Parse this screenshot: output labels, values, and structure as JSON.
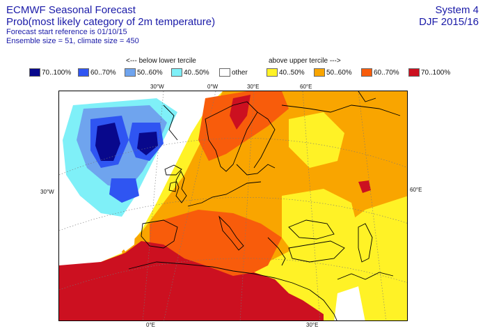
{
  "header": {
    "title_line1": "ECMWF Seasonal Forecast",
    "title_line2": "Prob(most likely category of 2m temperature)",
    "forecast_start": "Forecast start reference is 01/10/15",
    "ensemble": "Ensemble size = 51, climate size = 450",
    "system": "System 4",
    "season": "DJF 2015/16"
  },
  "legend": {
    "below_heading": "<--- below lower tercile",
    "above_heading": "above upper tercile --->",
    "items": [
      {
        "label": "70..100%",
        "color": "#08088c"
      },
      {
        "label": "60..70%",
        "color": "#2f55f2"
      },
      {
        "label": "50..60%",
        "color": "#6fa4ee"
      },
      {
        "label": "40..50%",
        "color": "#7ff0f8"
      },
      {
        "label": "other",
        "color": "#ffffff"
      },
      {
        "label": "40..50%",
        "color": "#fff226"
      },
      {
        "label": "50..60%",
        "color": "#f9a500"
      },
      {
        "label": "60..70%",
        "color": "#f85c0b"
      },
      {
        "label": "70..100%",
        "color": "#cc1020"
      }
    ]
  },
  "map_labels": {
    "lon_top": [
      "30°W",
      "0°W",
      "30°E",
      "60°E"
    ],
    "lon_bottom": [
      "0°E",
      "30°E"
    ],
    "lat_left": "30°W",
    "lat_right": "60°E"
  }
}
